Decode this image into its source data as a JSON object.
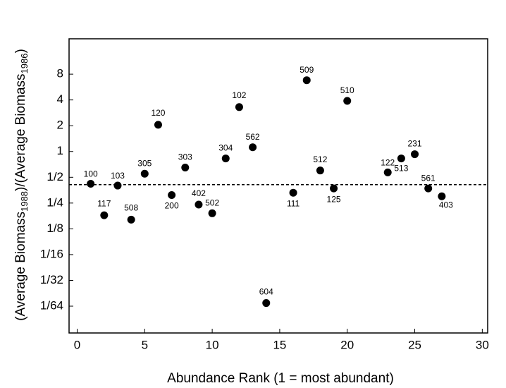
{
  "chart_data": {
    "type": "scatter",
    "x_label": "Abundance Rank (1 = most abundant)",
    "y_label_parts": [
      "(Average Biomass",
      "1988",
      ")/(Average Biomass",
      "1986",
      ")"
    ],
    "log_y": true,
    "color": "#000000",
    "x": [
      1,
      2,
      3,
      4,
      5,
      6,
      7,
      8,
      9,
      10,
      11,
      12,
      13,
      14,
      16,
      17,
      18,
      19,
      20,
      23,
      24,
      25,
      26,
      27
    ],
    "values": [
      0.42,
      0.18,
      0.4,
      0.16,
      0.55,
      2.05,
      0.31,
      0.65,
      0.24,
      0.19,
      0.83,
      3.3,
      1.12,
      0.017,
      0.33,
      6.8,
      0.6,
      0.37,
      3.9,
      0.57,
      0.83,
      0.93,
      0.37,
      0.3
    ],
    "point_labels": [
      "100",
      "117",
      "103",
      "508",
      "305",
      "120",
      "200",
      "303",
      "402",
      "502",
      "304",
      "102",
      "562",
      "604",
      "111",
      "509",
      "512",
      "125",
      "510",
      "122",
      "513",
      "231",
      "561",
      "403"
    ],
    "reference_line": 0.41,
    "xlim": [
      -0.6,
      30.4
    ],
    "ylim": [
      0.0076,
      20.7
    ],
    "xticks": [
      0,
      5,
      10,
      15,
      20,
      25,
      30
    ],
    "yticks": [
      8,
      4,
      2,
      1,
      {
        "value": 0.5,
        "label": "1/2"
      },
      {
        "value": 0.25,
        "label": "1/4"
      },
      {
        "value": 0.125,
        "label": "1/8"
      },
      {
        "value": 0.0625,
        "label": "1/16"
      },
      {
        "value": 0.03125,
        "label": "1/32"
      },
      {
        "value": 0.015625,
        "label": "1/64"
      }
    ]
  }
}
